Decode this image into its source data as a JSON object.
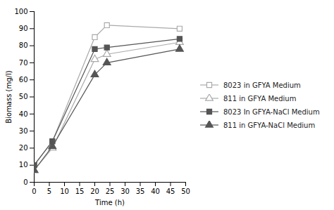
{
  "chart_data": {
    "type": "line",
    "x": [
      0,
      6,
      20,
      24,
      48
    ],
    "series": [
      {
        "name": "8023 in GFYA Medium",
        "color": "#aaaaaa",
        "marker": "square_open",
        "values": [
          10,
          24,
          85,
          92,
          90
        ]
      },
      {
        "name": "811 in GFYA Medium",
        "color": "#aaaaaa",
        "marker": "triangle_open",
        "values": [
          7,
          20,
          72,
          75,
          82
        ]
      },
      {
        "name": "8023 In GFYA-NaCl Medium",
        "color": "#555555",
        "marker": "square",
        "values": [
          10,
          24,
          78,
          79,
          84
        ]
      },
      {
        "name": "811 in GFYA-NaCl Medium",
        "color": "#555555",
        "marker": "triangle",
        "values": [
          7,
          21,
          63,
          70,
          78
        ]
      }
    ],
    "xlabel": "Time (h)",
    "ylabel": "Biomass (mg/l)",
    "xlim": [
      0,
      50
    ],
    "ylim": [
      0,
      100
    ],
    "xticks": [
      0,
      5,
      10,
      15,
      20,
      25,
      30,
      35,
      40,
      45,
      50
    ],
    "yticks": [
      0,
      10,
      20,
      30,
      40,
      50,
      60,
      70,
      80,
      90,
      100
    ],
    "grid": false,
    "legend": "right"
  }
}
